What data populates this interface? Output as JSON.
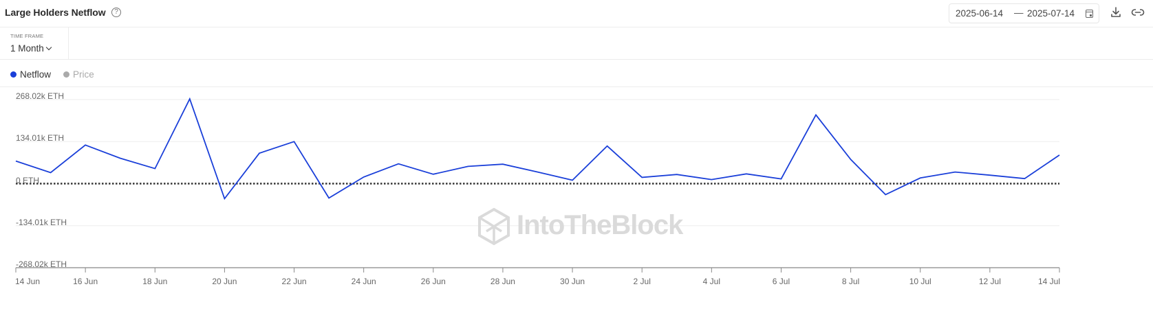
{
  "header": {
    "title": "Large Holders Netflow",
    "help_glyph": "?",
    "date_start": "2025-06-14",
    "date_separator": "—",
    "date_end": "2025-07-14"
  },
  "controls": {
    "timeframe_label": "TIME FRAME",
    "timeframe_value": "1 Month"
  },
  "legend": [
    {
      "label": "Netflow",
      "color": "#1a3fd9",
      "active": true
    },
    {
      "label": "Price",
      "color": "#aaaaaa",
      "active": false
    }
  ],
  "watermark": "IntoTheBlock",
  "colors": {
    "line": "#1a3fd9",
    "zero_line": "#333333",
    "grid": "#eeeeee",
    "axis": "#888888"
  },
  "chart_data": {
    "type": "line",
    "title": "Large Holders Netflow",
    "xlabel": "",
    "ylabel": "ETH",
    "ylim": [
      -268020,
      268020
    ],
    "y_tick_labels": [
      "268.02k ETH",
      "134.01k ETH",
      "0 ETH",
      "-134.01k ETH",
      "-268.02k ETH"
    ],
    "y_tick_values": [
      268020,
      134010,
      0,
      -134010,
      -268020
    ],
    "x_tick_labels": [
      "14 Jun",
      "16 Jun",
      "18 Jun",
      "20 Jun",
      "22 Jun",
      "24 Jun",
      "26 Jun",
      "28 Jun",
      "30 Jun",
      "2 Jul",
      "4 Jul",
      "6 Jul",
      "8 Jul",
      "10 Jul",
      "12 Jul",
      "14 Jul"
    ],
    "grid": true,
    "legend_position": "top-left",
    "zero_line_style": "dotted",
    "x": [
      "14 Jun",
      "15 Jun",
      "16 Jun",
      "17 Jun",
      "18 Jun",
      "19 Jun",
      "20 Jun",
      "21 Jun",
      "22 Jun",
      "23 Jun",
      "24 Jun",
      "25 Jun",
      "26 Jun",
      "27 Jun",
      "28 Jun",
      "29 Jun",
      "30 Jun",
      "1 Jul",
      "2 Jul",
      "3 Jul",
      "4 Jul",
      "5 Jul",
      "6 Jul",
      "7 Jul",
      "8 Jul",
      "9 Jul",
      "10 Jul",
      "11 Jul",
      "12 Jul",
      "13 Jul",
      "14 Jul"
    ],
    "series": [
      {
        "name": "Netflow",
        "values": [
          72000,
          35000,
          123000,
          81000,
          48000,
          270000,
          -48000,
          97000,
          134000,
          -46000,
          21000,
          63000,
          30000,
          55000,
          62000,
          37000,
          11000,
          120000,
          20000,
          29000,
          13000,
          31000,
          15000,
          219000,
          77000,
          -35000,
          18000,
          37000,
          27000,
          16000,
          91000
        ]
      }
    ]
  }
}
